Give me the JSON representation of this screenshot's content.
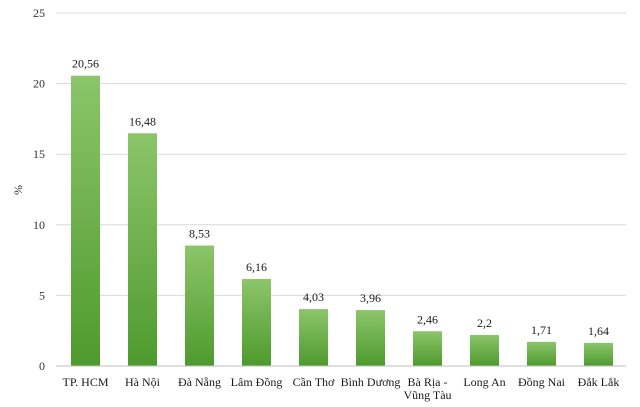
{
  "chart_data": {
    "type": "bar",
    "title": "",
    "xlabel": "",
    "ylabel": "%",
    "ylim": [
      0,
      25
    ],
    "yticks": [
      "0",
      "5",
      "10",
      "15",
      "20",
      "25"
    ],
    "grid": true,
    "categories": [
      [
        "TP. HCM"
      ],
      [
        "Hà Nội"
      ],
      [
        "Đà Nẵng"
      ],
      [
        "Lâm Đồng"
      ],
      [
        "Cần Thơ"
      ],
      [
        "Bình Dương"
      ],
      [
        "Bà Rịa -",
        "Vũng Tàu"
      ],
      [
        "Long An"
      ],
      [
        "Đồng Nai"
      ],
      [
        "Đắk Lắk"
      ]
    ],
    "values": [
      20.56,
      16.48,
      8.53,
      6.16,
      4.03,
      3.96,
      2.46,
      2.2,
      1.71,
      1.64
    ],
    "data_labels": [
      "20,56",
      "16,48",
      "8,53",
      "6,16",
      "4,03",
      "3,96",
      "2,46",
      "2,2",
      "1,71",
      "1,64"
    ],
    "colors": {
      "bar_top": "#8cc56a",
      "bar_bottom": "#4e9a2e",
      "grid": "#d9d9d9",
      "axis": "#bfbfbf"
    }
  }
}
